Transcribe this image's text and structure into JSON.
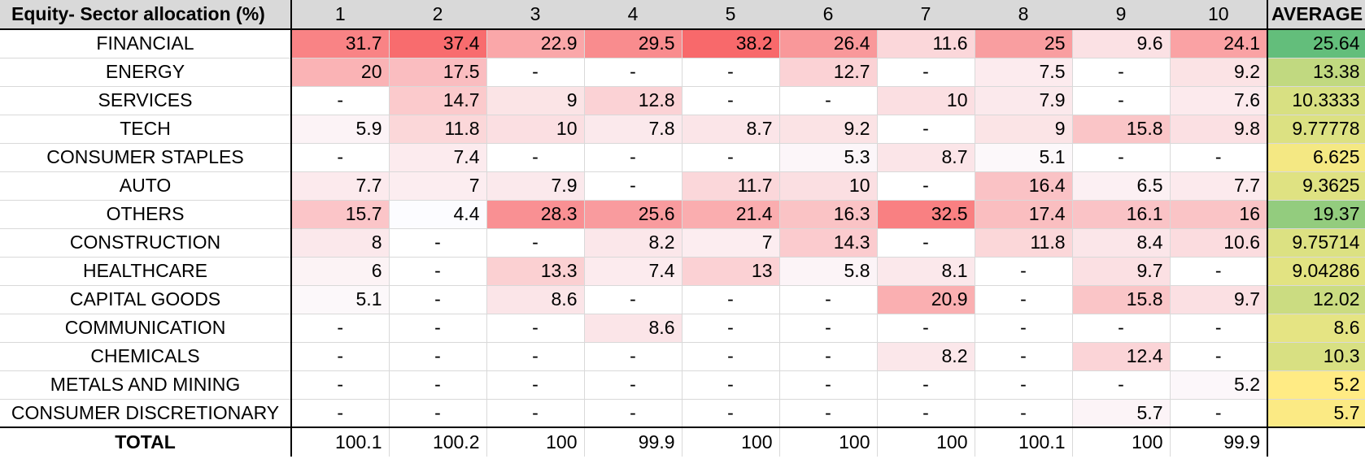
{
  "table": {
    "header_label": "Equity- Sector allocation (%)",
    "columns": [
      "1",
      "2",
      "3",
      "4",
      "5",
      "6",
      "7",
      "8",
      "9",
      "10"
    ],
    "average_label": "AVERAGE",
    "total_label": "TOTAL",
    "rows": [
      {
        "sector": "FINANCIAL",
        "values": [
          "31.7",
          "37.4",
          "22.9",
          "29.5",
          "38.2",
          "26.4",
          "11.6",
          "25",
          "9.6",
          "24.1"
        ],
        "average": "25.64"
      },
      {
        "sector": "ENERGY",
        "values": [
          "20",
          "17.5",
          "-",
          "-",
          "-",
          "12.7",
          "-",
          "7.5",
          "-",
          "9.2"
        ],
        "average": "13.38"
      },
      {
        "sector": "SERVICES",
        "values": [
          "-",
          "14.7",
          "9",
          "12.8",
          "-",
          "-",
          "10",
          "7.9",
          "-",
          "7.6"
        ],
        "average": "10.3333"
      },
      {
        "sector": "TECH",
        "values": [
          "5.9",
          "11.8",
          "10",
          "7.8",
          "8.7",
          "9.2",
          "-",
          "9",
          "15.8",
          "9.8"
        ],
        "average": "9.77778"
      },
      {
        "sector": "CONSUMER STAPLES",
        "values": [
          "-",
          "7.4",
          "-",
          "-",
          "-",
          "5.3",
          "8.7",
          "5.1",
          "-",
          "-"
        ],
        "average": "6.625"
      },
      {
        "sector": "AUTO",
        "values": [
          "7.7",
          "7",
          "7.9",
          "-",
          "11.7",
          "10",
          "-",
          "16.4",
          "6.5",
          "7.7"
        ],
        "average": "9.3625"
      },
      {
        "sector": "OTHERS",
        "values": [
          "15.7",
          "4.4",
          "28.3",
          "25.6",
          "21.4",
          "16.3",
          "32.5",
          "17.4",
          "16.1",
          "16"
        ],
        "average": "19.37"
      },
      {
        "sector": "CONSTRUCTION",
        "values": [
          "8",
          "-",
          "-",
          "8.2",
          "7",
          "14.3",
          "-",
          "11.8",
          "8.4",
          "10.6"
        ],
        "average": "9.75714"
      },
      {
        "sector": "HEALTHCARE",
        "values": [
          "6",
          "-",
          "13.3",
          "7.4",
          "13",
          "5.8",
          "8.1",
          "-",
          "9.7",
          "-"
        ],
        "average": "9.04286"
      },
      {
        "sector": "CAPITAL GOODS",
        "values": [
          "5.1",
          "-",
          "8.6",
          "-",
          "-",
          "-",
          "20.9",
          "-",
          "15.8",
          "9.7"
        ],
        "average": "12.02"
      },
      {
        "sector": "COMMUNICATION",
        "values": [
          "-",
          "-",
          "-",
          "8.6",
          "-",
          "-",
          "-",
          "-",
          "-",
          "-"
        ],
        "average": "8.6"
      },
      {
        "sector": "CHEMICALS",
        "values": [
          "-",
          "-",
          "-",
          "-",
          "-",
          "-",
          "8.2",
          "-",
          "12.4",
          "-"
        ],
        "average": "10.3"
      },
      {
        "sector": "METALS AND MINING",
        "values": [
          "-",
          "-",
          "-",
          "-",
          "-",
          "-",
          "-",
          "-",
          "-",
          "5.2"
        ],
        "average": "5.2"
      },
      {
        "sector": "CONSUMER DISCRETIONARY",
        "values": [
          "-",
          "-",
          "-",
          "-",
          "-",
          "-",
          "-",
          "-",
          "5.7",
          "-"
        ],
        "average": "5.7"
      }
    ],
    "totals": [
      "100.1",
      "100.2",
      "100",
      "99.9",
      "100",
      "100",
      "100",
      "100.1",
      "100",
      "99.9"
    ],
    "colors": {
      "header_bg": "#d9d9d9",
      "heat_high": "#f8696b",
      "heat_low": "#fcfcff",
      "avg_high": "#63be7b",
      "avg_mid": "#ffeb84"
    }
  }
}
